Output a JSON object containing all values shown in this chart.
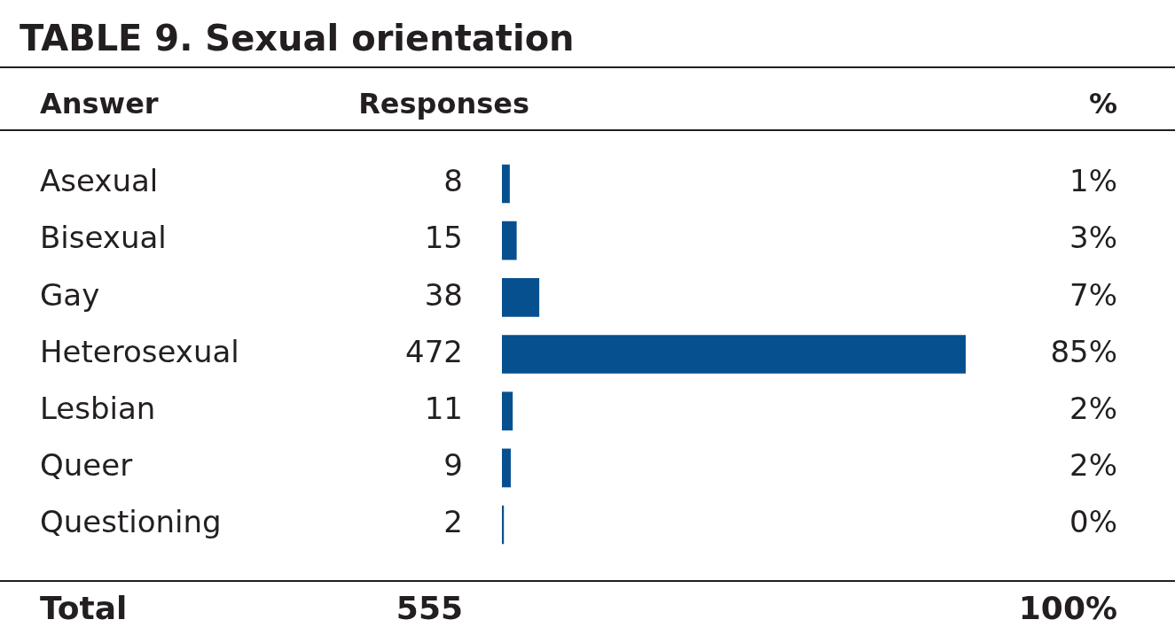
{
  "chart_data": {
    "type": "bar",
    "orientation": "horizontal",
    "title": "TABLE 9. Sexual orientation",
    "ylabel": "Answer",
    "categories": [
      "Asexual",
      "Bisexual",
      "Gay",
      "Heterosexual",
      "Lesbian",
      "Queer",
      "Questioning"
    ],
    "values": [
      8,
      15,
      38,
      472,
      11,
      9,
      2
    ],
    "value_labels": [
      "8",
      "15",
      "38",
      "472",
      "11",
      "9",
      "2"
    ],
    "color": "#07508f",
    "legend": false,
    "annotations": [
      "Responses",
      "%",
      "Total",
      "555",
      "100%",
      "1%",
      "3%",
      "7%",
      "85%",
      "2%",
      "2%",
      "0%"
    ]
  }
}
